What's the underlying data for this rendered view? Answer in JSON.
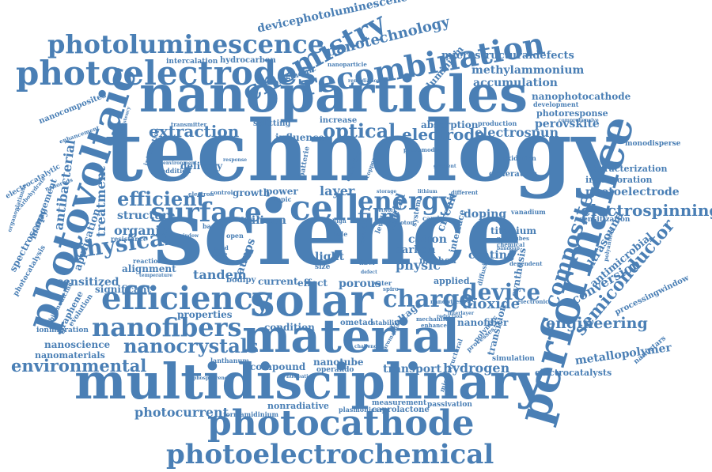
{
  "color": "#4a7fb5",
  "words": [
    {
      "text": "technology"
    },
    {
      "text": "science"
    },
    {
      "text": "nanoparticles"
    },
    {
      "text": "multidisciplinary"
    },
    {
      "text": "material"
    },
    {
      "text": "performance"
    },
    {
      "text": "photocathode"
    },
    {
      "text": "photoelectrochemical"
    },
    {
      "text": "photovoltaic"
    },
    {
      "text": "photoelectrodes"
    },
    {
      "text": "photoluminescence"
    },
    {
      "text": "chemistry"
    },
    {
      "text": "recombination"
    },
    {
      "text": "solar"
    },
    {
      "text": "efficiency"
    },
    {
      "text": "nanofibers"
    },
    {
      "text": "nanocrystals"
    },
    {
      "text": "environmental"
    },
    {
      "text": "surface"
    },
    {
      "text": "cell"
    },
    {
      "text": "energy"
    },
    {
      "text": "charge"
    },
    {
      "text": "device"
    },
    {
      "text": "composite"
    },
    {
      "text": "semiconductor"
    },
    {
      "text": "electrospinning"
    },
    {
      "text": "engineering"
    },
    {
      "text": "physical"
    },
    {
      "text": "efficient"
    },
    {
      "text": "optical"
    },
    {
      "text": "electrode"
    },
    {
      "text": "extraction"
    },
    {
      "text": "nanotechnology"
    },
    {
      "text": "devicephotoluminescence"
    },
    {
      "text": "microstructuraldefects"
    },
    {
      "text": "methylammonium"
    },
    {
      "text": "accumulation"
    },
    {
      "text": "nanophotocathode"
    },
    {
      "text": "perovskite"
    },
    {
      "text": "electrospun"
    },
    {
      "text": "photoelectrode"
    },
    {
      "text": "characterization"
    },
    {
      "text": "incorporation"
    },
    {
      "text": "metallopolymer"
    },
    {
      "text": "electrocatalysts"
    },
    {
      "text": "photocurrent"
    },
    {
      "text": "nonradiative"
    },
    {
      "text": "caprolactone"
    },
    {
      "text": "hydrogen"
    },
    {
      "text": "transport"
    },
    {
      "text": "dioxide"
    },
    {
      "text": "conversion"
    },
    {
      "text": "antimicrobial"
    },
    {
      "text": "ultrasound"
    },
    {
      "text": "coating"
    },
    {
      "text": "titanium"
    },
    {
      "text": "doping"
    },
    {
      "text": "circuit"
    },
    {
      "text": "film"
    },
    {
      "text": "light"
    },
    {
      "text": "layer"
    },
    {
      "text": "tandem"
    },
    {
      "text": "sensitized"
    },
    {
      "text": "treatment"
    },
    {
      "text": "antibacterial"
    },
    {
      "text": "organic"
    },
    {
      "text": "structure"
    },
    {
      "text": "application"
    },
    {
      "text": "alignment"
    },
    {
      "text": "properties"
    },
    {
      "text": "condition"
    },
    {
      "text": "compound"
    },
    {
      "text": "nanotube"
    },
    {
      "text": "porous"
    },
    {
      "text": "physic"
    },
    {
      "text": "voltage"
    },
    {
      "text": "cation"
    },
    {
      "text": "carbon"
    },
    {
      "text": "silicon"
    },
    {
      "text": "growth"
    },
    {
      "text": "power"
    },
    {
      "text": "aunps"
    },
    {
      "text": "delivery"
    },
    {
      "text": "influence"
    },
    {
      "text": "absorption"
    },
    {
      "text": "splitting"
    },
    {
      "text": "increase"
    },
    {
      "text": "plasmonic"
    },
    {
      "text": "hydrocarbon"
    },
    {
      "text": "intercalation"
    },
    {
      "text": "aluminium"
    },
    {
      "text": "nanocomposites"
    },
    {
      "text": "spectroscopy"
    },
    {
      "text": "photocatalysis"
    },
    {
      "text": "management"
    },
    {
      "text": "electrocatalytic"
    },
    {
      "text": "nanomaterials"
    },
    {
      "text": "nanoscience"
    },
    {
      "text": "ionmigration"
    },
    {
      "text": "significant"
    },
    {
      "text": "current"
    },
    {
      "text": "effect"
    },
    {
      "text": "bodipy"
    },
    {
      "text": "ometad"
    },
    {
      "text": "stability"
    },
    {
      "text": "method"
    },
    {
      "text": "applied"
    },
    {
      "text": "nanofiber"
    },
    {
      "text": "transition"
    },
    {
      "text": "synthesis"
    },
    {
      "text": "sensitization"
    },
    {
      "text": "vanadium"
    },
    {
      "text": "oxidation"
    },
    {
      "text": "generation"
    },
    {
      "text": "monodisperse"
    },
    {
      "text": "nanostars"
    },
    {
      "text": "processingwindow"
    },
    {
      "text": "simulation"
    },
    {
      "text": "operando"
    },
    {
      "text": "measurement"
    },
    {
      "text": "passivation"
    },
    {
      "text": "formamidinium"
    },
    {
      "text": "plasmonics"
    },
    {
      "text": "lanthanum"
    },
    {
      "text": "production"
    },
    {
      "text": "photoresponse"
    },
    {
      "text": "development"
    },
    {
      "text": "comprehensive"
    },
    {
      "text": "transmitter"
    },
    {
      "text": "interaction"
    },
    {
      "text": "addition"
    },
    {
      "text": "reaction"
    },
    {
      "text": "resistance"
    },
    {
      "text": "temperature"
    },
    {
      "text": "electronic"
    },
    {
      "text": "nanowires"
    },
    {
      "text": "enhance"
    },
    {
      "text": "mechanism"
    },
    {
      "text": "nanotubes"
    },
    {
      "text": "chemical"
    },
    {
      "text": "bandgap"
    },
    {
      "text": "photomodes"
    },
    {
      "text": "dependent"
    },
    {
      "text": "different"
    },
    {
      "text": "polymer"
    },
    {
      "text": "batterie"
    },
    {
      "text": "evaluation"
    },
    {
      "text": "copper"
    },
    {
      "text": "remediation"
    },
    {
      "text": "nanoparticle"
    },
    {
      "text": "enhancement"
    },
    {
      "text": "consistency"
    },
    {
      "text": "lithium"
    },
    {
      "text": "storage"
    },
    {
      "text": "spiro"
    },
    {
      "text": "water"
    },
    {
      "text": "fiber"
    },
    {
      "text": "hole"
    },
    {
      "text": "size"
    },
    {
      "text": "topic"
    },
    {
      "text": "open"
    },
    {
      "text": "phase"
    },
    {
      "text": "based"
    },
    {
      "text": "window"
    },
    {
      "text": "control"
    },
    {
      "text": "electron"
    },
    {
      "text": "environment"
    },
    {
      "text": "response"
    },
    {
      "text": "biomedicine"
    },
    {
      "text": "graphene"
    },
    {
      "text": "evolution"
    },
    {
      "text": "organoplatinum"
    },
    {
      "text": "carbohydrate"
    },
    {
      "text": "nanorods"
    },
    {
      "text": "interlayer"
    },
    {
      "text": "polyaniline"
    },
    {
      "text": "reduction"
    },
    {
      "text": "gradient"
    },
    {
      "text": "challenge"
    },
    {
      "text": "nucleation"
    },
    {
      "text": "phosphorene"
    },
    {
      "text": "aromatic"
    },
    {
      "text": "microstructural"
    },
    {
      "text": "diffusion"
    },
    {
      "text": "processes"
    },
    {
      "text": "system"
    },
    {
      "text": "interface"
    },
    {
      "text": "result"
    },
    {
      "text": "level"
    },
    {
      "text": "carrier"
    },
    {
      "text": "network"
    },
    {
      "text": "photon"
    },
    {
      "text": "defect"
    },
    {
      "text": "metal"
    },
    {
      "text": "high"
    },
    {
      "text": "solid"
    },
    {
      "text": "state"
    }
  ]
}
